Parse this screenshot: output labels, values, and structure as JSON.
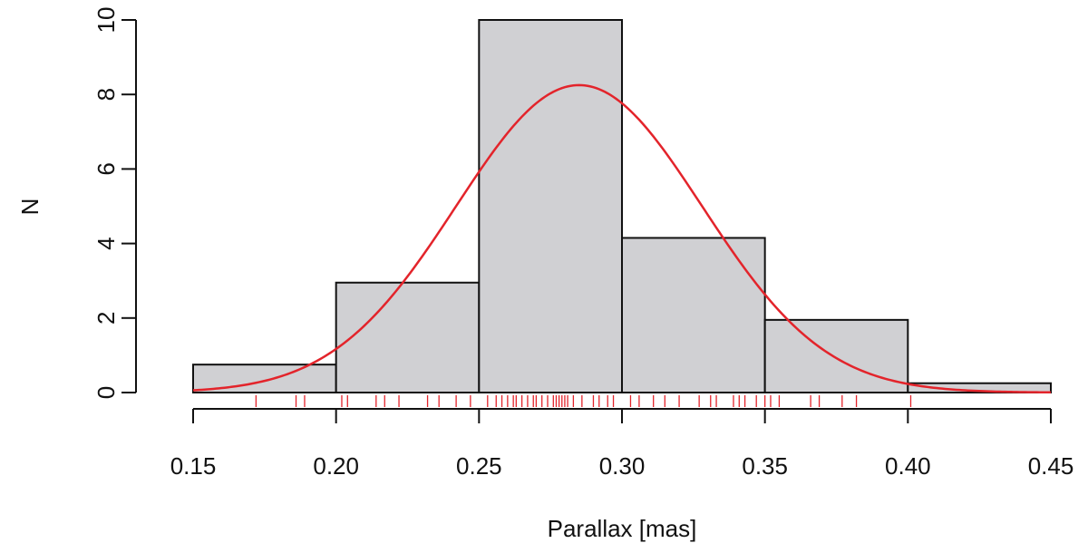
{
  "chart_data": {
    "type": "histogram",
    "xlabel": "Parallax [mas]",
    "ylabel": "N",
    "xlim": [
      0.15,
      0.45
    ],
    "ylim": [
      0,
      10
    ],
    "x_ticks": [
      "0.15",
      "0.20",
      "0.25",
      "0.30",
      "0.35",
      "0.40",
      "0.45"
    ],
    "y_ticks": [
      "0",
      "2",
      "4",
      "6",
      "8",
      "10"
    ],
    "bins": [
      {
        "from": 0.15,
        "to": 0.2,
        "count": 0.75
      },
      {
        "from": 0.2,
        "to": 0.25,
        "count": 2.95
      },
      {
        "from": 0.25,
        "to": 0.3,
        "count": 10.0
      },
      {
        "from": 0.3,
        "to": 0.35,
        "count": 4.15
      },
      {
        "from": 0.35,
        "to": 0.4,
        "count": 1.95
      },
      {
        "from": 0.4,
        "to": 0.45,
        "count": 0.25
      }
    ],
    "fit_curve": {
      "type": "gaussian",
      "mean": 0.285,
      "sd": 0.043,
      "peak": 8.25
    },
    "rug": [
      0.172,
      0.186,
      0.189,
      0.202,
      0.204,
      0.214,
      0.217,
      0.222,
      0.232,
      0.236,
      0.242,
      0.247,
      0.253,
      0.256,
      0.258,
      0.26,
      0.262,
      0.263,
      0.265,
      0.267,
      0.269,
      0.27,
      0.272,
      0.274,
      0.276,
      0.277,
      0.278,
      0.279,
      0.28,
      0.281,
      0.283,
      0.286,
      0.29,
      0.292,
      0.295,
      0.297,
      0.303,
      0.306,
      0.311,
      0.315,
      0.32,
      0.327,
      0.331,
      0.333,
      0.339,
      0.341,
      0.343,
      0.347,
      0.35,
      0.352,
      0.355,
      0.366,
      0.369,
      0.377,
      0.382,
      0.401
    ],
    "colors": {
      "bar_fill": "#d0d0d3",
      "bar_stroke": "#111111",
      "curve": "#e3242b",
      "rug": "#e3242b"
    },
    "grid": false
  }
}
